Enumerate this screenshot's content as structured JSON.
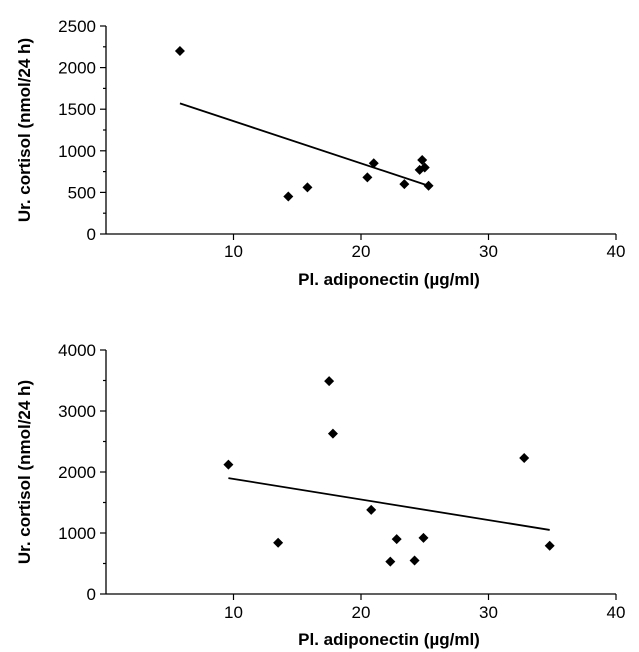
{
  "chart_data": [
    {
      "type": "scatter",
      "xlabel": "Pl. adiponectin (µg/ml)",
      "ylabel": "Ur. cortisol (nmol/24 h)",
      "xlim": [
        0,
        40
      ],
      "ylim": [
        0,
        2500
      ],
      "x_ticks": [
        10,
        20,
        30,
        40
      ],
      "y_ticks": [
        0,
        500,
        1000,
        1500,
        2000,
        2500
      ],
      "x_tick_labels": [
        "10",
        "20",
        "30",
        "40"
      ],
      "y_tick_labels": [
        "0",
        "500",
        "1000",
        "1500",
        "2000",
        "2500"
      ],
      "grid": false,
      "marker": "diamond",
      "series": [
        {
          "points": [
            {
              "x": 5.8,
              "y": 2200
            },
            {
              "x": 14.3,
              "y": 450
            },
            {
              "x": 15.8,
              "y": 560
            },
            {
              "x": 20.5,
              "y": 680
            },
            {
              "x": 21.0,
              "y": 850
            },
            {
              "x": 23.4,
              "y": 600
            },
            {
              "x": 24.6,
              "y": 770
            },
            {
              "x": 24.8,
              "y": 890
            },
            {
              "x": 25.0,
              "y": 800
            },
            {
              "x": 25.3,
              "y": 580
            }
          ]
        }
      ],
      "trendline": {
        "x": [
          5.8,
          25.3
        ],
        "y": [
          1570,
          580
        ]
      }
    },
    {
      "type": "scatter",
      "xlabel": "Pl. adiponectin (µg/ml)",
      "ylabel": "Ur. cortisol (nmol/24 h)",
      "xlim": [
        0,
        40
      ],
      "ylim": [
        0,
        4000
      ],
      "x_ticks": [
        10,
        20,
        30,
        40
      ],
      "y_ticks": [
        0,
        1000,
        2000,
        3000,
        4000
      ],
      "x_tick_labels": [
        "10",
        "20",
        "30",
        "40"
      ],
      "y_tick_labels": [
        "0",
        "1000",
        "2000",
        "3000",
        "4000"
      ],
      "grid": false,
      "marker": "diamond",
      "series": [
        {
          "points": [
            {
              "x": 9.6,
              "y": 2120
            },
            {
              "x": 13.5,
              "y": 840
            },
            {
              "x": 17.5,
              "y": 3490
            },
            {
              "x": 17.8,
              "y": 2630
            },
            {
              "x": 20.8,
              "y": 1380
            },
            {
              "x": 22.3,
              "y": 530
            },
            {
              "x": 22.8,
              "y": 900
            },
            {
              "x": 24.2,
              "y": 550
            },
            {
              "x": 24.9,
              "y": 920
            },
            {
              "x": 32.8,
              "y": 2230
            },
            {
              "x": 34.8,
              "y": 790
            }
          ]
        }
      ],
      "trendline": {
        "x": [
          9.6,
          34.8
        ],
        "y": [
          1900,
          1050
        ]
      }
    }
  ]
}
